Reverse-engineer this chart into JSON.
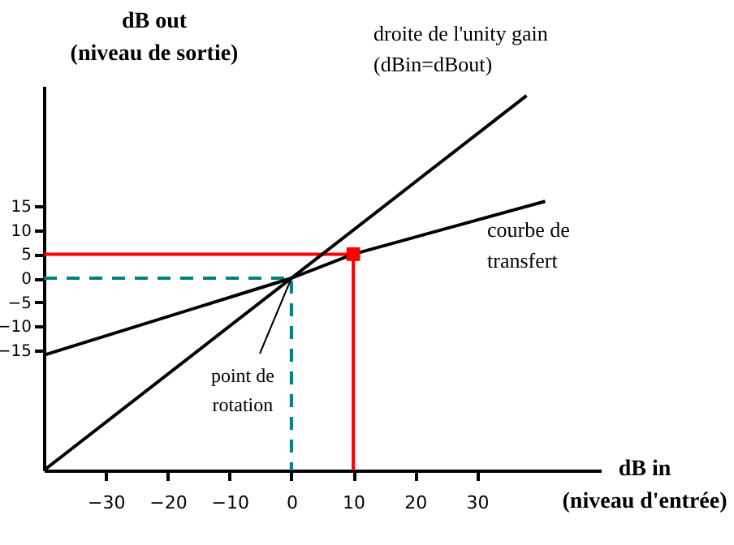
{
  "chart_data": {
    "type": "line",
    "xlabel": "dB in\n(niveau d'entrée)",
    "ylabel": "dB out\n(niveau de sortie)",
    "xlim": [
      -40,
      50
    ],
    "ylim": [
      -40,
      40
    ],
    "xticks": [
      -30,
      -20,
      -10,
      0,
      10,
      20,
      30
    ],
    "yticks": [
      -15,
      -10,
      -5,
      0,
      5,
      10,
      15
    ],
    "grid": false,
    "series": [
      {
        "color": "#ff0000",
        "x": [
          -40,
          10,
          10
        ],
        "values": [
          5,
          5,
          -40
        ],
        "line_style": "solid",
        "marker": "none"
      },
      {
        "color": "#008080",
        "x": [
          -40,
          0,
          0
        ],
        "values": [
          0,
          0,
          -40
        ],
        "line_style": "dashed",
        "marker": "none"
      },
      {
        "color": "#000000",
        "x": [
          -40,
          38
        ],
        "values": [
          -40,
          38
        ],
        "line_style": "solid",
        "marker": "none"
      },
      {
        "color": "#000000",
        "x": [
          -40,
          0,
          10,
          41
        ],
        "values": [
          -16,
          0,
          5,
          16
        ],
        "line_style": "solid",
        "marker": "none"
      },
      {
        "type": "scatter",
        "color": "#ff0000",
        "x": [
          10
        ],
        "values": [
          5
        ],
        "marker": "square"
      }
    ],
    "annotations": [
      "droite de l'unity gain\n(dBin=dBout)",
      "courbe de\ntransfert",
      {
        "text": "point de\nrotation",
        "x": 0,
        "y": 0
      }
    ]
  }
}
